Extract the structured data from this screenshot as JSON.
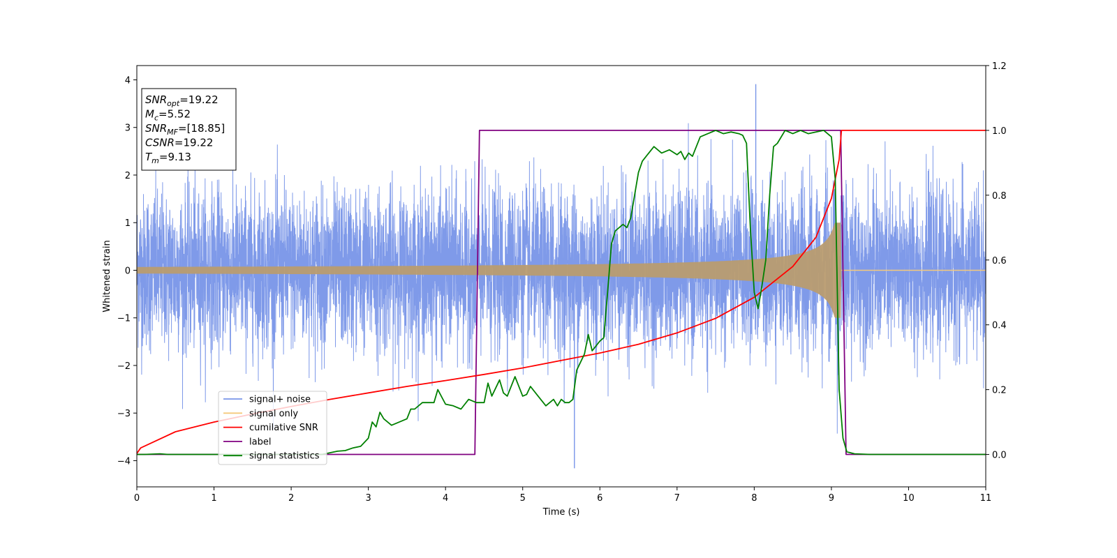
{
  "chart_data": {
    "type": "line",
    "xlabel": "Time (s)",
    "ylabel": "Whitened strain",
    "xlim": [
      0,
      11
    ],
    "ylim": [
      -4.55,
      4.3
    ],
    "y2lim": [
      -0.1,
      1.2
    ],
    "x_ticks": [
      0,
      1,
      2,
      3,
      4,
      5,
      6,
      7,
      8,
      9,
      10,
      11
    ],
    "y_ticks": [
      -4,
      -3,
      -2,
      -1,
      0,
      1,
      2,
      3,
      4
    ],
    "y2_ticks": [
      "0.0",
      "0.2",
      "0.4",
      "0.6",
      "0.8",
      "1.0",
      "1.2"
    ],
    "grid": false,
    "legend_position": "lower-left",
    "annotation": {
      "lines": [
        {
          "base": "SNR",
          "sub": "opt",
          "rest": "=19.22"
        },
        {
          "base": "M",
          "sub": "c",
          "rest": "=5.52"
        },
        {
          "base": "SNR",
          "sub": "MF",
          "rest": "=[18.85]"
        },
        {
          "base": "CSNR",
          "sub": "",
          "rest": "=19.22"
        },
        {
          "base": "T",
          "sub": "m",
          "rest": "=9.13"
        }
      ]
    },
    "series": [
      {
        "name": "signal+ noise",
        "color": "#7895e8",
        "axis": "left",
        "description_values": {
          "noise_band": [
            -1.4,
            1.4
          ],
          "extreme_peaks": [
            [
              8.02,
              3.91
            ],
            [
              5.67,
              -4.16
            ]
          ],
          "merger_time": 9.13
        }
      },
      {
        "name": "signal only",
        "color": "#f5c97b",
        "axis": "left",
        "envelope": {
          "start": 0.07,
          "at_9": 0.8,
          "merger_amplitude": 1.0,
          "merger_time": 9.13
        }
      },
      {
        "name": "cumilative SNR",
        "color": "#ff0000",
        "axis": "right",
        "x": [
          0,
          0.05,
          0.5,
          1,
          1.5,
          2,
          2.5,
          3,
          3.5,
          4,
          4.5,
          5,
          5.5,
          6,
          6.5,
          7,
          7.5,
          8,
          8.5,
          8.8,
          9.0,
          9.1,
          9.13,
          11
        ],
        "y": [
          0.003,
          0.02,
          0.07,
          0.1,
          0.125,
          0.148,
          0.17,
          0.19,
          0.21,
          0.228,
          0.247,
          0.267,
          0.29,
          0.313,
          0.34,
          0.375,
          0.42,
          0.485,
          0.58,
          0.67,
          0.79,
          0.91,
          1.0,
          1.0
        ]
      },
      {
        "name": "label",
        "color": "#800080",
        "axis": "right",
        "x": [
          0,
          4.38,
          4.44,
          9.12,
          9.19,
          11
        ],
        "y": [
          0,
          0,
          1,
          1,
          0,
          0
        ]
      },
      {
        "name": "signal statistics",
        "color": "#008000",
        "axis": "right",
        "x": [
          0,
          0.1,
          0.3,
          0.4,
          0.6,
          1.0,
          1.5,
          2.0,
          2.4,
          2.6,
          2.7,
          2.8,
          2.9,
          3.0,
          3.05,
          3.1,
          3.15,
          3.2,
          3.3,
          3.4,
          3.5,
          3.55,
          3.6,
          3.7,
          3.8,
          3.85,
          3.9,
          4.0,
          4.1,
          4.2,
          4.3,
          4.4,
          4.5,
          4.55,
          4.6,
          4.7,
          4.75,
          4.8,
          4.9,
          5.0,
          5.05,
          5.1,
          5.2,
          5.3,
          5.35,
          5.4,
          5.45,
          5.5,
          5.55,
          5.6,
          5.65,
          5.7,
          5.8,
          5.85,
          5.9,
          6.0,
          6.05,
          6.1,
          6.15,
          6.2,
          6.3,
          6.35,
          6.4,
          6.5,
          6.55,
          6.6,
          6.7,
          6.75,
          6.8,
          6.9,
          7.0,
          7.05,
          7.1,
          7.15,
          7.2,
          7.3,
          7.4,
          7.5,
          7.6,
          7.7,
          7.8,
          7.85,
          7.9,
          7.95,
          8.0,
          8.05,
          8.1,
          8.15,
          8.2,
          8.25,
          8.3,
          8.4,
          8.5,
          8.6,
          8.7,
          8.8,
          8.9,
          8.95,
          9.0,
          9.05,
          9.1,
          9.15,
          9.2,
          9.3,
          9.5,
          10.0,
          11.0
        ],
        "y": [
          0.0,
          0.0,
          0.002,
          0.0,
          0.0,
          0.0,
          0.0,
          0.0,
          0.0,
          0.01,
          0.012,
          0.02,
          0.025,
          0.05,
          0.1,
          0.085,
          0.13,
          0.11,
          0.09,
          0.1,
          0.11,
          0.14,
          0.14,
          0.16,
          0.16,
          0.16,
          0.2,
          0.155,
          0.15,
          0.14,
          0.17,
          0.16,
          0.16,
          0.22,
          0.18,
          0.23,
          0.19,
          0.18,
          0.24,
          0.18,
          0.185,
          0.21,
          0.18,
          0.15,
          0.16,
          0.17,
          0.15,
          0.17,
          0.16,
          0.16,
          0.17,
          0.26,
          0.31,
          0.37,
          0.32,
          0.35,
          0.36,
          0.5,
          0.65,
          0.69,
          0.71,
          0.7,
          0.73,
          0.87,
          0.905,
          0.92,
          0.95,
          0.94,
          0.93,
          0.94,
          0.925,
          0.935,
          0.91,
          0.93,
          0.92,
          0.98,
          0.99,
          1.0,
          0.99,
          0.995,
          0.99,
          0.985,
          0.96,
          0.7,
          0.5,
          0.45,
          0.52,
          0.6,
          0.8,
          0.95,
          0.96,
          1.0,
          0.99,
          1.0,
          0.99,
          0.995,
          1.0,
          0.99,
          0.98,
          0.85,
          0.2,
          0.05,
          0.008,
          0.002,
          0.0,
          0.0,
          0.0
        ]
      }
    ]
  }
}
